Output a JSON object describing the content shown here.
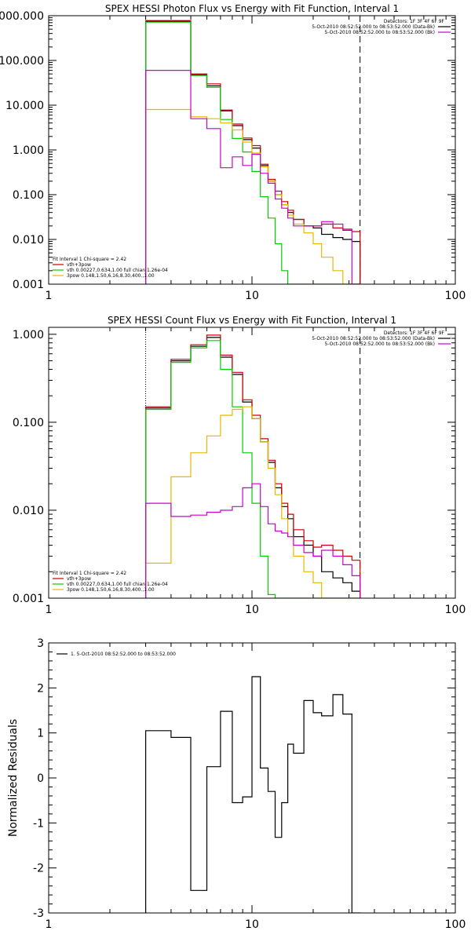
{
  "chart_data": [
    {
      "type": "line",
      "title": "SPEX HESSI Photon Flux vs Energy with Fit Function, Interval 1",
      "xscale": "log",
      "yscale": "log",
      "xlim": [
        1,
        100
      ],
      "ylim": [
        0.001,
        1000
      ],
      "x_ticks": [
        "1",
        "10",
        "100"
      ],
      "y_ticks": [
        "0.001",
        "0.010",
        "0.100",
        "1.000",
        "10.000",
        "100.000",
        "1000.000"
      ],
      "header": {
        "detectors": "Detectors: 1F 3F 4F 6F 9F",
        "line1": "5-Oct-2010 08:52:52.000 to 08:53:52.000 (Data-Bk)",
        "line2": "5-Oct-2010 08:52:52.000 to 08:53:52.000 (Bk)"
      },
      "fit_legend": {
        "title": "Fit Interval  1    Chi-square = 2.42",
        "entries": [
          {
            "label": "vth+3pow",
            "color": "#cc0000"
          },
          {
            "label": "vth 0.00227,0.634,1.00  full chian 1.26e-04",
            "color": "#00cc00"
          },
          {
            "label": "3pow 0.148,1.50,6.16,8.30,400.,1.00",
            "color": "#e6b800"
          }
        ]
      },
      "markers": {
        "dotted_x": 3,
        "dashed_x": 34
      },
      "bin_edges": [
        3,
        4,
        5,
        6,
        7,
        8,
        9,
        10,
        11,
        12,
        13,
        14,
        15,
        16,
        18,
        20,
        22,
        25,
        28,
        31,
        34
      ],
      "series": [
        {
          "color": "#000000",
          "values": [
            750,
            750,
            48,
            27,
            7.5,
            3.5,
            1.7,
            1.1,
            0.45,
            0.2,
            0.1,
            0.06,
            0.04,
            0.028,
            0.02,
            0.018,
            0.013,
            0.011,
            0.01,
            0.009
          ]
        },
        {
          "color": "#cc0000",
          "values": [
            780,
            780,
            50,
            30,
            7.8,
            3.8,
            1.85,
            1.25,
            0.48,
            0.22,
            0.12,
            0.07,
            0.045,
            0.028,
            0.02,
            0.02,
            0.022,
            0.018,
            0.016,
            0.015
          ]
        },
        {
          "color": "#00cc00",
          "values": [
            720,
            720,
            46,
            25,
            4.8,
            1.8,
            0.9,
            0.33,
            0.09,
            0.03,
            0.008,
            0.002,
            0.001,
            0.001,
            0.001,
            0.001,
            0.001,
            0.001,
            0.001,
            0.001
          ]
        },
        {
          "color": "#e6b800",
          "values": [
            8,
            8,
            5.5,
            5,
            4,
            2.8,
            1.5,
            0.85,
            0.42,
            0.2,
            0.1,
            0.06,
            0.035,
            0.022,
            0.014,
            0.008,
            0.004,
            0.002,
            0.001,
            0.001
          ]
        },
        {
          "color": "#cc00cc",
          "values": [
            60,
            60,
            5,
            3,
            0.4,
            0.7,
            0.45,
            0.8,
            0.3,
            0.18,
            0.08,
            0.05,
            0.03,
            0.02,
            0.02,
            0.02,
            0.025,
            0.022,
            0.017,
            0.001
          ]
        }
      ]
    },
    {
      "type": "line",
      "title": "SPEX HESSI Count Flux vs Energy with Fit Function, Interval 1",
      "xscale": "log",
      "yscale": "log",
      "xlim": [
        1,
        100
      ],
      "ylim": [
        0.001,
        1.2
      ],
      "x_ticks": [
        "1",
        "10",
        "100"
      ],
      "y_ticks": [
        "0.001",
        "0.010",
        "0.100",
        "1.000"
      ],
      "header": {
        "detectors": "Detectors: 1F 3F 4F 6F 9F",
        "line1": "5-Oct-2010 08:52:52.000 to 08:53:52.000 (Data-Bk)",
        "line2": "5-Oct-2010 08:52:52.000 to 08:53:52.000 (Bk)"
      },
      "fit_legend": {
        "title": "Fit Interval  1    Chi-square = 2.42",
        "entries": [
          {
            "label": "vth+3pow",
            "color": "#cc0000"
          },
          {
            "label": "vth 0.00227,0.634,1.00  full chian 1.26e-04",
            "color": "#00cc00"
          },
          {
            "label": "3pow 0.148,1.50,6.16,8.30,400.,1.00",
            "color": "#e6b800"
          }
        ]
      },
      "markers": {
        "dotted_x": 3,
        "dashed_x": 34
      },
      "bin_edges": [
        3,
        4,
        5,
        6,
        7,
        8,
        9,
        10,
        11,
        12,
        13,
        14,
        15,
        16,
        18,
        20,
        22,
        25,
        28,
        31,
        34
      ],
      "series": [
        {
          "color": "#000000",
          "values": [
            0.145,
            0.5,
            0.73,
            0.92,
            0.55,
            0.35,
            0.17,
            0.11,
            0.06,
            0.035,
            0.018,
            0.011,
            0.008,
            0.005,
            0.004,
            0.003,
            0.002,
            0.0017,
            0.0015,
            0.0012
          ]
        },
        {
          "color": "#cc0000",
          "values": [
            0.15,
            0.52,
            0.76,
            0.98,
            0.58,
            0.37,
            0.18,
            0.12,
            0.065,
            0.037,
            0.02,
            0.012,
            0.009,
            0.006,
            0.0045,
            0.0038,
            0.004,
            0.0035,
            0.003,
            0.0027
          ]
        },
        {
          "color": "#00cc00",
          "values": [
            0.14,
            0.48,
            0.7,
            0.85,
            0.4,
            0.15,
            0.045,
            0.012,
            0.003,
            0.0011,
            0.001,
            0.001,
            0.001,
            0.001,
            0.001,
            0.001,
            0.001,
            0.001,
            0.001,
            0.001
          ]
        },
        {
          "color": "#e6b800",
          "values": [
            0.0025,
            0.024,
            0.045,
            0.07,
            0.12,
            0.14,
            0.15,
            0.11,
            0.06,
            0.03,
            0.015,
            0.008,
            0.005,
            0.003,
            0.002,
            0.0015,
            0.001,
            0.001,
            0.001,
            0.001
          ]
        },
        {
          "color": "#cc00cc",
          "values": [
            0.012,
            0.0085,
            0.0088,
            0.0095,
            0.01,
            0.011,
            0.018,
            0.02,
            0.011,
            0.007,
            0.0058,
            0.0055,
            0.005,
            0.004,
            0.0033,
            0.003,
            0.0035,
            0.003,
            0.0024,
            0.0018
          ]
        }
      ]
    },
    {
      "type": "line",
      "title": "",
      "xscale": "log",
      "yscale": "linear",
      "xlim": [
        1,
        100
      ],
      "ylim": [
        -3,
        3
      ],
      "x_ticks": [
        "1",
        "10",
        "100"
      ],
      "y_ticks": [
        "-3",
        "-2",
        "-1",
        "0",
        "1",
        "2",
        "3"
      ],
      "ylabel": "Normalized Residuals",
      "legend": {
        "label": "1.  5-Oct-2010 08:52:52.000 to 08:53:52.000",
        "color": "#000000"
      },
      "bin_edges": [
        3,
        4,
        5,
        6,
        7,
        8,
        9,
        10,
        11,
        12,
        13,
        14,
        15,
        16,
        18,
        20,
        22,
        25,
        28,
        31,
        34
      ],
      "series": [
        {
          "color": "#000000",
          "values": [
            1.05,
            0.9,
            -2.5,
            0.25,
            1.48,
            -0.55,
            -0.42,
            2.25,
            0.22,
            -0.3,
            -1.32,
            -0.55,
            0.75,
            0.55,
            1.72,
            1.45,
            1.38,
            1.85,
            1.42,
            -3.0
          ]
        }
      ]
    }
  ]
}
